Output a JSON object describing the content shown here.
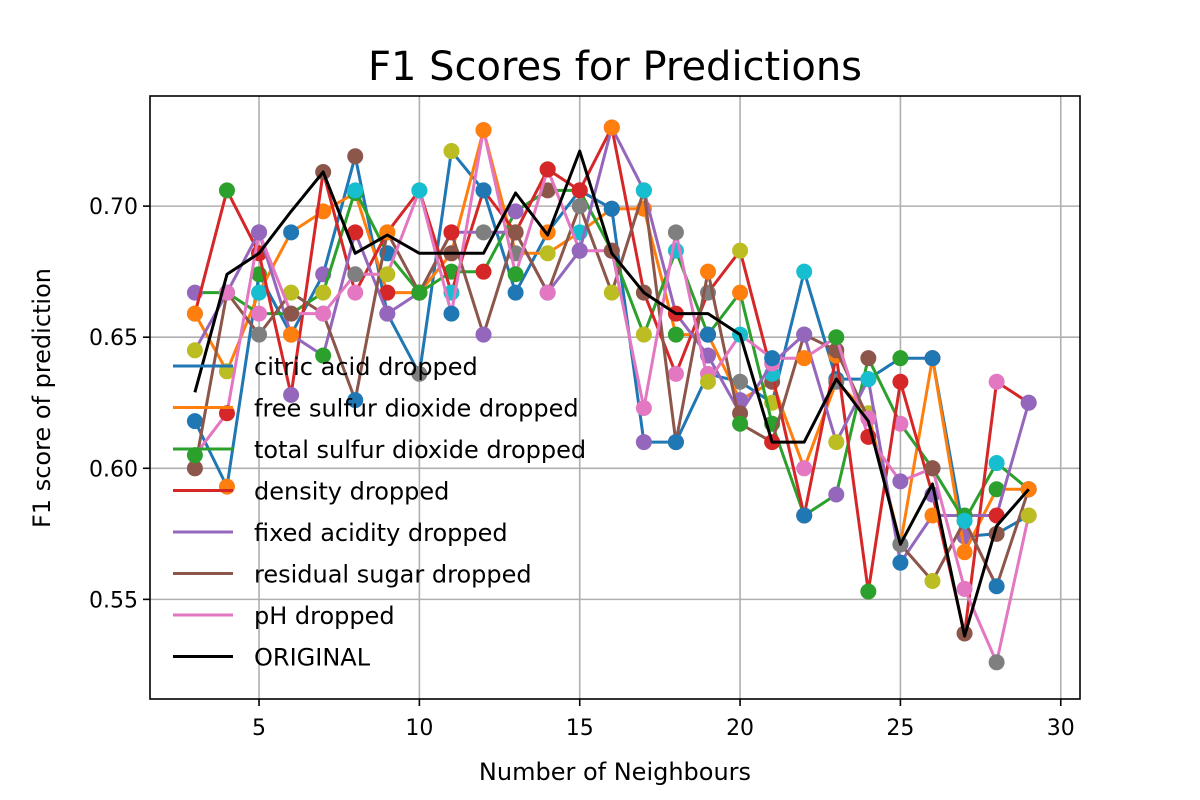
{
  "chart_data": {
    "type": "line",
    "title": "F1 Scores for Predictions",
    "xlabel": "Number of Neighbours",
    "ylabel": "F1 score of prediction",
    "xlim": [
      1.6,
      30.6
    ],
    "ylim": [
      0.512,
      0.742
    ],
    "xticks": [
      5,
      10,
      15,
      20,
      25,
      30
    ],
    "yticks": [
      0.55,
      0.6,
      0.65,
      0.7
    ],
    "ytick_labels": [
      "0.55",
      "0.60",
      "0.65",
      "0.70"
    ],
    "grid": true,
    "legend_position": "lower-left",
    "x": [
      3,
      4,
      5,
      6,
      7,
      8,
      9,
      10,
      11,
      12,
      13,
      14,
      15,
      16,
      17,
      18,
      19,
      20,
      21,
      22,
      23,
      24,
      25,
      26,
      27,
      28,
      29
    ],
    "marker_palette": [
      "#1f77b4",
      "#ff7f0e",
      "#2ca02c",
      "#d62728",
      "#9467bd",
      "#8c564b",
      "#e377c2",
      "#7f7f7f",
      "#bcbd22",
      "#17becf"
    ],
    "series": [
      {
        "name": "citric acid dropped",
        "color": "#1f77b4",
        "values": [
          0.618,
          0.593,
          0.674,
          0.651,
          0.674,
          0.719,
          0.659,
          0.636,
          0.721,
          0.706,
          0.667,
          0.69,
          0.706,
          0.699,
          0.61,
          0.61,
          0.636,
          0.633,
          0.625,
          0.675,
          0.634,
          0.634,
          0.642,
          0.642,
          0.574,
          0.575,
          0.582
        ]
      },
      {
        "name": "free sulfur dioxide dropped",
        "color": "#ff7f0e",
        "values": [
          0.659,
          0.637,
          0.667,
          0.69,
          0.698,
          0.705,
          0.667,
          0.667,
          0.682,
          0.729,
          0.682,
          0.682,
          0.69,
          0.699,
          0.699,
          0.651,
          0.651,
          0.626,
          0.633,
          0.6,
          0.633,
          0.621,
          0.571,
          0.642,
          0.568,
          0.592,
          0.592
        ]
      },
      {
        "name": "total sulfur dioxide dropped",
        "color": "#2ca02c",
        "values": [
          0.667,
          0.667,
          0.659,
          0.659,
          0.667,
          0.706,
          0.682,
          0.667,
          0.675,
          0.675,
          0.698,
          0.706,
          0.706,
          0.683,
          0.651,
          0.683,
          0.651,
          0.667,
          0.617,
          0.582,
          0.59,
          0.642,
          0.617,
          0.6,
          0.58,
          0.602,
          0.592
        ]
      },
      {
        "name": "density dropped",
        "color": "#d62728",
        "values": [
          0.659,
          0.706,
          0.682,
          0.628,
          0.713,
          0.667,
          0.69,
          0.706,
          0.667,
          0.706,
          0.69,
          0.714,
          0.706,
          0.73,
          0.667,
          0.636,
          0.667,
          0.683,
          0.636,
          0.582,
          0.643,
          0.553,
          0.633,
          0.59,
          0.537,
          0.633,
          0.625
        ]
      },
      {
        "name": "fixed acidity dropped",
        "color": "#9467bd",
        "values": [
          0.645,
          0.667,
          0.69,
          0.651,
          0.643,
          0.69,
          0.659,
          0.667,
          0.69,
          0.69,
          0.69,
          0.667,
          0.683,
          0.73,
          0.706,
          0.659,
          0.643,
          0.621,
          0.64,
          0.651,
          0.61,
          0.634,
          0.564,
          0.582,
          0.582,
          0.582,
          0.625
        ]
      },
      {
        "name": "residual sugar dropped",
        "color": "#8c564b",
        "values": [
          0.6,
          0.667,
          0.651,
          0.667,
          0.659,
          0.626,
          0.69,
          0.667,
          0.69,
          0.651,
          0.69,
          0.667,
          0.7,
          0.667,
          0.706,
          0.61,
          0.675,
          0.617,
          0.61,
          0.651,
          0.645,
          0.619,
          0.571,
          0.557,
          0.58,
          0.555,
          0.592
        ]
      },
      {
        "name": "pH dropped",
        "color": "#e377c2",
        "values": [
          0.605,
          0.621,
          0.69,
          0.659,
          0.659,
          0.674,
          0.674,
          0.706,
          0.659,
          0.729,
          0.674,
          0.714,
          0.683,
          0.683,
          0.623,
          0.69,
          0.633,
          0.651,
          0.642,
          0.642,
          0.65,
          0.612,
          0.595,
          0.6,
          0.554,
          0.526,
          0.582
        ]
      },
      {
        "name": "ORIGINAL",
        "color": "#000000",
        "values": [
          0.629,
          0.674,
          0.682,
          0.698,
          0.713,
          0.682,
          0.689,
          0.682,
          0.682,
          0.682,
          0.705,
          0.689,
          0.721,
          0.682,
          0.667,
          0.659,
          0.659,
          0.651,
          0.61,
          0.61,
          0.634,
          0.618,
          0.571,
          0.594,
          0.536,
          0.578,
          0.592
        ]
      }
    ]
  }
}
